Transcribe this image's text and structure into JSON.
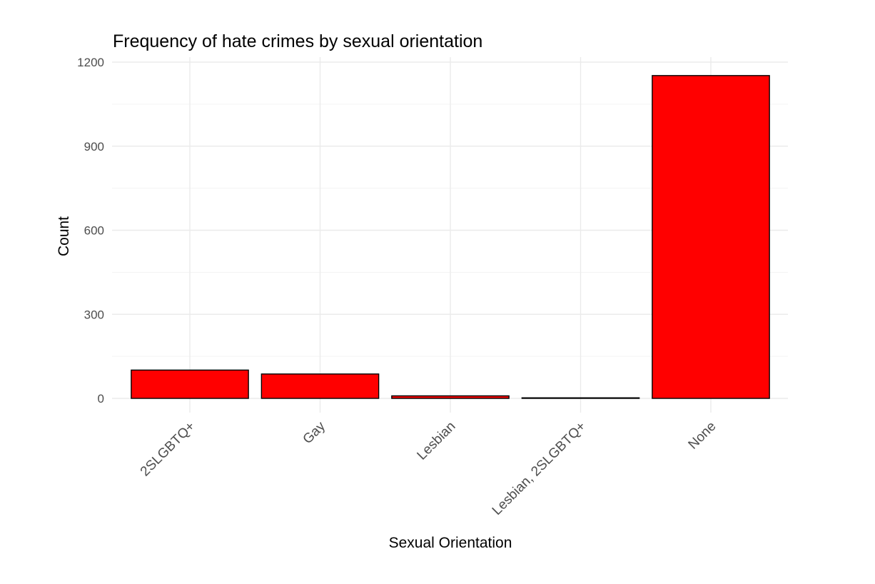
{
  "chart_data": {
    "type": "bar",
    "title": "Frequency of hate crimes by sexual orientation",
    "xlabel": "Sexual Orientation",
    "ylabel": "Count",
    "categories": [
      "2SLGBTQ+",
      "Gay",
      "Lesbian",
      "Lesbian, 2SLGBTQ+",
      "None"
    ],
    "values": [
      101,
      87,
      9,
      2,
      1152
    ],
    "ylim": [
      -40,
      1200
    ],
    "yticks": [
      0,
      300,
      600,
      900,
      1200
    ],
    "grid": true,
    "legend": "none",
    "bar_color": "#ff0000",
    "bar_outline": "#000000"
  }
}
